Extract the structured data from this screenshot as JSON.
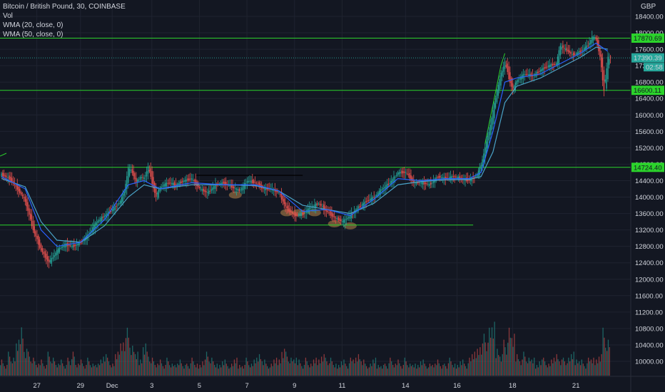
{
  "legend": {
    "title": "Bitcoin / British Pound, 30, COINBASE",
    "vol": "Vol",
    "wma20": "WMA (20, close, 0)",
    "wma50": "WMA (50, close, 0)"
  },
  "currency": "GBP",
  "colors": {
    "background": "#131722",
    "grid": "#1f2330",
    "up": "#26a69a",
    "down": "#ef5350",
    "level_line": "#2bd32b",
    "wma20": "#2962ff",
    "wma50": "#4aa3c8",
    "price_label_bg": "#26a69a",
    "level_label_bg": "#2bd32b",
    "highlight": "#b8864a"
  },
  "chart_data": {
    "type": "candlestick",
    "title": "Bitcoin / British Pound, 30, COINBASE",
    "ylim": [
      9700,
      18600
    ],
    "y_ticks": [
      "18400.00",
      "18000.00",
      "17600.00",
      "17200.00",
      "16800.00",
      "16400.00",
      "16000.00",
      "15600.00",
      "15200.00",
      "14800.00",
      "14400.00",
      "14000.00",
      "13600.00",
      "13200.00",
      "12800.00",
      "12400.00",
      "12000.00",
      "11600.00",
      "11200.00",
      "10800.00",
      "10400.00",
      "10000.00"
    ],
    "x_ticks": [
      "27",
      "29",
      "Dec",
      "3",
      "5",
      "7",
      "9",
      "11",
      "14",
      "16",
      "18",
      "21"
    ],
    "horizontal_levels": [
      {
        "value": 17870.69,
        "label": "17870.69"
      },
      {
        "value": 16600.11,
        "label": "16600.11"
      },
      {
        "value": 14724.4,
        "label": "14724.40"
      },
      {
        "value": 13320.0,
        "label": ""
      }
    ],
    "last_price": {
      "value": 17390.39,
      "label": "17390.39",
      "countdown": "02:58"
    },
    "price_path": [
      [
        0,
        14550
      ],
      [
        2,
        14450
      ],
      [
        4,
        14200
      ],
      [
        6,
        13900
      ],
      [
        8,
        13200
      ],
      [
        10,
        12700
      ],
      [
        12,
        12400
      ],
      [
        14,
        12700
      ],
      [
        16,
        12850
      ],
      [
        18,
        12800
      ],
      [
        20,
        12900
      ],
      [
        22,
        13100
      ],
      [
        24,
        13400
      ],
      [
        26,
        13550
      ],
      [
        28,
        13700
      ],
      [
        30,
        13900
      ],
      [
        31,
        14150
      ],
      [
        32,
        14700
      ],
      [
        33,
        14600
      ],
      [
        34,
        14350
      ],
      [
        35,
        14500
      ],
      [
        36,
        14450
      ],
      [
        37,
        14750
      ],
      [
        38,
        14350
      ],
      [
        39,
        14000
      ],
      [
        40,
        14250
      ],
      [
        42,
        14350
      ],
      [
        44,
        14300
      ],
      [
        46,
        14400
      ],
      [
        48,
        14450
      ],
      [
        50,
        14200
      ],
      [
        52,
        14100
      ],
      [
        54,
        14300
      ],
      [
        56,
        14350
      ],
      [
        58,
        14250
      ],
      [
        60,
        14150
      ],
      [
        62,
        14400
      ],
      [
        64,
        14350
      ],
      [
        66,
        14200
      ],
      [
        68,
        14200
      ],
      [
        70,
        14100
      ],
      [
        72,
        13700
      ],
      [
        74,
        13550
      ],
      [
        76,
        13600
      ],
      [
        78,
        13750
      ],
      [
        80,
        13850
      ],
      [
        82,
        13650
      ],
      [
        84,
        13500
      ],
      [
        86,
        13400
      ],
      [
        88,
        13550
      ],
      [
        90,
        13750
      ],
      [
        92,
        13900
      ],
      [
        94,
        14000
      ],
      [
        96,
        14200
      ],
      [
        98,
        14350
      ],
      [
        100,
        14600
      ],
      [
        102,
        14600
      ],
      [
        104,
        14350
      ],
      [
        106,
        14350
      ],
      [
        108,
        14300
      ],
      [
        110,
        14500
      ],
      [
        112,
        14450
      ],
      [
        114,
        14500
      ],
      [
        116,
        14450
      ],
      [
        118,
        14400
      ],
      [
        120,
        14550
      ],
      [
        121,
        14800
      ],
      [
        122,
        15200
      ],
      [
        123,
        15600
      ],
      [
        124,
        16100
      ],
      [
        125,
        16600
      ],
      [
        126,
        17000
      ],
      [
        127,
        17300
      ],
      [
        128,
        16900
      ],
      [
        129,
        16600
      ],
      [
        130,
        16850
      ],
      [
        132,
        17000
      ],
      [
        134,
        16950
      ],
      [
        136,
        17100
      ],
      [
        138,
        17200
      ],
      [
        140,
        17250
      ],
      [
        141,
        17700
      ],
      [
        142,
        17600
      ],
      [
        143,
        17550
      ],
      [
        144,
        17450
      ],
      [
        146,
        17550
      ],
      [
        148,
        17700
      ],
      [
        149,
        17900
      ],
      [
        150,
        17850
      ],
      [
        151,
        17400
      ],
      [
        152,
        16600
      ],
      [
        153,
        17390
      ]
    ],
    "wma20_path": [
      [
        0,
        14500
      ],
      [
        6,
        14200
      ],
      [
        10,
        13200
      ],
      [
        14,
        12800
      ],
      [
        20,
        12900
      ],
      [
        26,
        13450
      ],
      [
        32,
        14300
      ],
      [
        36,
        14400
      ],
      [
        40,
        14200
      ],
      [
        48,
        14350
      ],
      [
        56,
        14300
      ],
      [
        64,
        14300
      ],
      [
        70,
        14150
      ],
      [
        76,
        13650
      ],
      [
        82,
        13700
      ],
      [
        88,
        13550
      ],
      [
        94,
        13950
      ],
      [
        100,
        14450
      ],
      [
        106,
        14400
      ],
      [
        112,
        14450
      ],
      [
        118,
        14450
      ],
      [
        121,
        14600
      ],
      [
        124,
        15600
      ],
      [
        127,
        16800
      ],
      [
        130,
        16900
      ],
      [
        136,
        17000
      ],
      [
        140,
        17200
      ],
      [
        146,
        17500
      ],
      [
        150,
        17750
      ],
      [
        153,
        17550
      ]
    ],
    "wma50_path": [
      [
        0,
        14450
      ],
      [
        6,
        14250
      ],
      [
        10,
        13400
      ],
      [
        14,
        12950
      ],
      [
        20,
        12900
      ],
      [
        26,
        13300
      ],
      [
        32,
        14000
      ],
      [
        36,
        14300
      ],
      [
        40,
        14200
      ],
      [
        48,
        14300
      ],
      [
        56,
        14300
      ],
      [
        64,
        14280
      ],
      [
        70,
        14150
      ],
      [
        76,
        13800
      ],
      [
        82,
        13700
      ],
      [
        88,
        13600
      ],
      [
        94,
        13850
      ],
      [
        100,
        14300
      ],
      [
        106,
        14380
      ],
      [
        112,
        14420
      ],
      [
        118,
        14430
      ],
      [
        121,
        14500
      ],
      [
        124,
        15100
      ],
      [
        127,
        16300
      ],
      [
        130,
        16700
      ],
      [
        136,
        16900
      ],
      [
        140,
        17100
      ],
      [
        146,
        17400
      ],
      [
        150,
        17650
      ],
      [
        153,
        17600
      ]
    ],
    "volume": [
      3,
      2,
      4,
      3,
      6,
      9,
      5,
      4,
      3,
      2,
      3,
      2,
      4,
      3,
      2,
      3,
      2,
      3,
      4,
      2,
      3,
      2,
      3,
      2,
      2,
      3,
      4,
      3,
      2,
      4,
      6,
      7,
      8,
      5,
      4,
      3,
      6,
      4,
      3,
      2,
      3,
      2,
      3,
      2,
      2,
      3,
      2,
      2,
      3,
      2,
      2,
      3,
      4,
      3,
      2,
      2,
      3,
      2,
      2,
      3,
      2,
      2,
      3,
      2,
      3,
      4,
      3,
      2,
      2,
      3,
      3,
      5,
      4,
      3,
      3,
      3,
      2,
      3,
      2,
      3,
      3,
      4,
      3,
      3,
      2,
      2,
      3,
      2,
      3,
      3,
      4,
      3,
      2,
      2,
      3,
      2,
      2,
      2,
      3,
      2,
      3,
      2,
      3,
      2,
      2,
      2,
      3,
      2,
      2,
      2,
      3,
      2,
      2,
      3,
      2,
      2,
      3,
      2,
      3,
      4,
      5,
      6,
      7,
      8,
      9,
      5,
      4,
      6,
      8,
      7,
      4,
      3,
      4,
      3,
      3,
      2,
      3,
      3,
      2,
      3,
      4,
      3,
      3,
      3,
      4,
      3,
      3,
      2,
      3,
      3,
      3,
      4,
      8,
      6
    ]
  }
}
